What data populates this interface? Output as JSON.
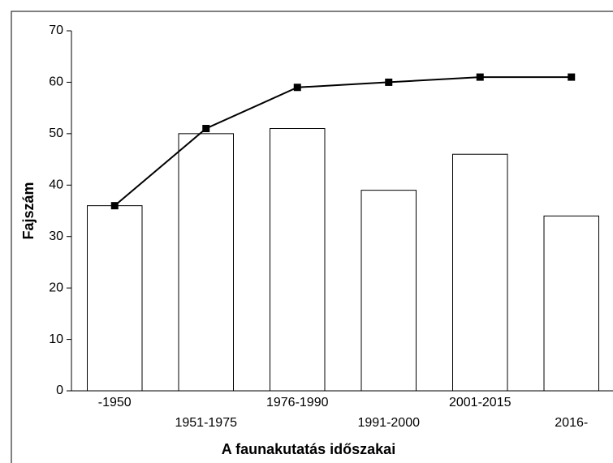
{
  "chart_data": {
    "type": "bar",
    "xlabel": "A faunakutatás időszakai",
    "ylabel": "Fajszám",
    "categories": [
      "-1950",
      "1951-1975",
      "1976-1990",
      "1991-2000",
      "2001-2015",
      "2016-"
    ],
    "series": [
      {
        "type": "bar",
        "color": "#ffffff",
        "values": [
          36,
          50,
          51,
          39,
          46,
          34
        ]
      },
      {
        "type": "line",
        "color": "#000000",
        "values": [
          36,
          51,
          59,
          60,
          61,
          61
        ]
      }
    ],
    "ylim": [
      0,
      70
    ],
    "yticks": [
      0,
      10,
      20,
      30,
      40,
      50,
      60,
      70
    ],
    "grid": false
  }
}
